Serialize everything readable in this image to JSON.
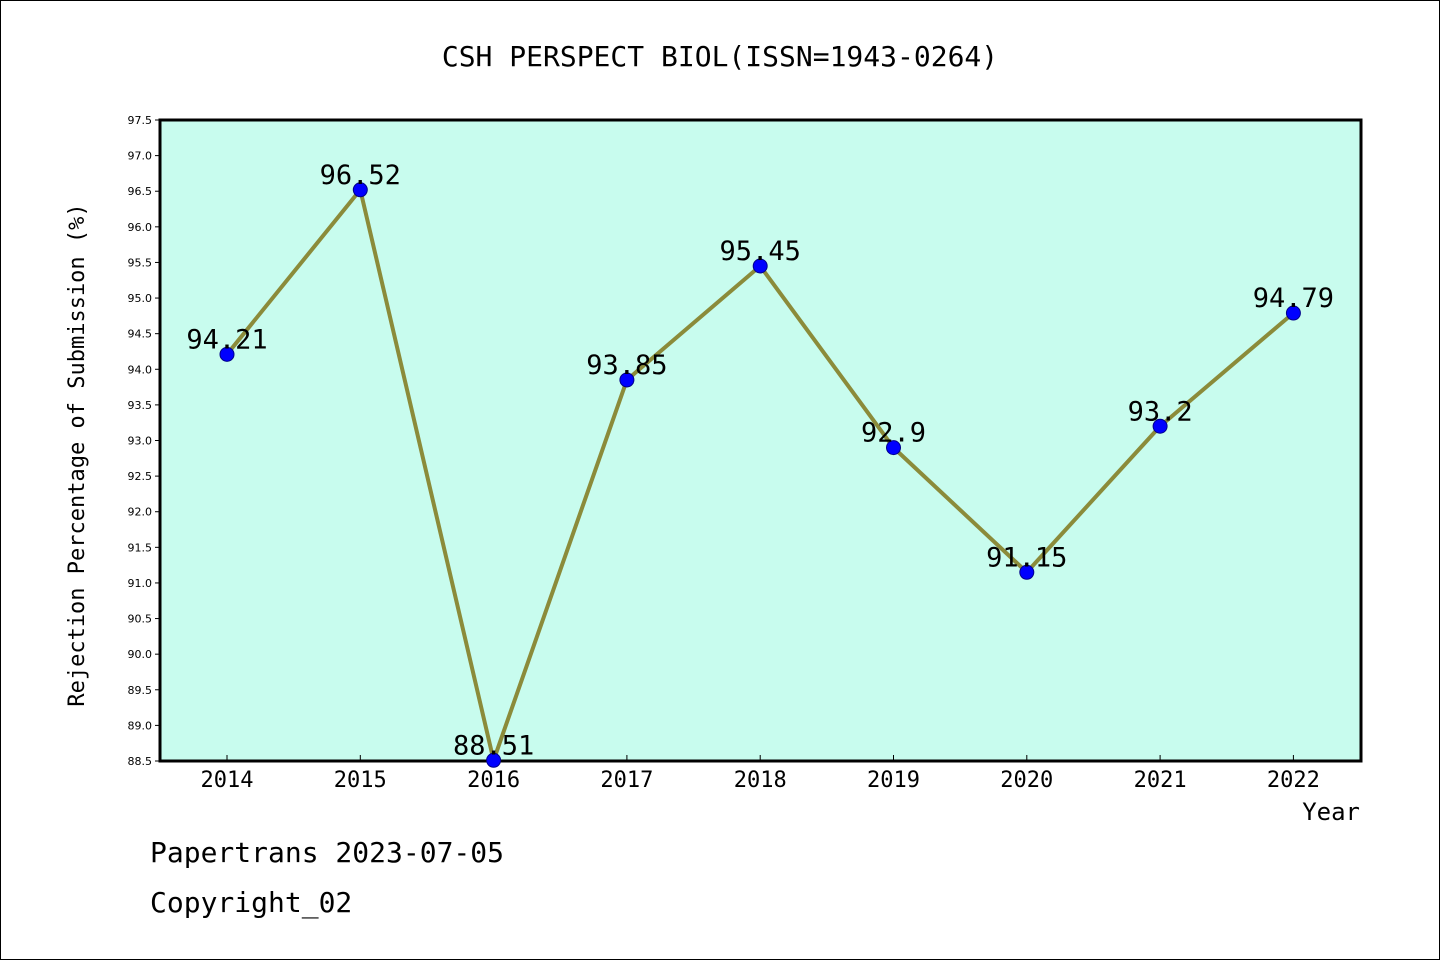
{
  "chart_data": {
    "type": "line",
    "title": "CSH PERSPECT BIOL(ISSN=1943-0264)",
    "xlabel": "Year",
    "ylabel": "Rejection Percentage of Submission (%)",
    "categories": [
      "2014",
      "2015",
      "2016",
      "2017",
      "2018",
      "2019",
      "2020",
      "2021",
      "2022"
    ],
    "series": [
      {
        "values": [
          94.21,
          96.52,
          88.51,
          93.85,
          95.45,
          92.9,
          91.15,
          93.2,
          94.79
        ],
        "labels": [
          "94.21",
          "96.52",
          "88.51",
          "93.85",
          "95.45",
          "92.9",
          "91.15",
          "93.2",
          "94.79"
        ],
        "line_color": "#8b8b3a",
        "marker_color": "#0000ff"
      }
    ],
    "ylim": [
      88.5,
      97.5
    ],
    "yticks": [
      "88.5",
      "89.0",
      "89.5",
      "90.0",
      "90.5",
      "91.0",
      "91.5",
      "92.0",
      "92.5",
      "93.0",
      "93.5",
      "94.0",
      "94.5",
      "95.0",
      "95.5",
      "96.0",
      "96.5",
      "97.0",
      "97.5"
    ],
    "plot_background": "#c8fcee",
    "grid": false,
    "legend": "none"
  },
  "footer": {
    "date": "Papertrans 2023-07-05",
    "copyright": "Copyright_02"
  }
}
